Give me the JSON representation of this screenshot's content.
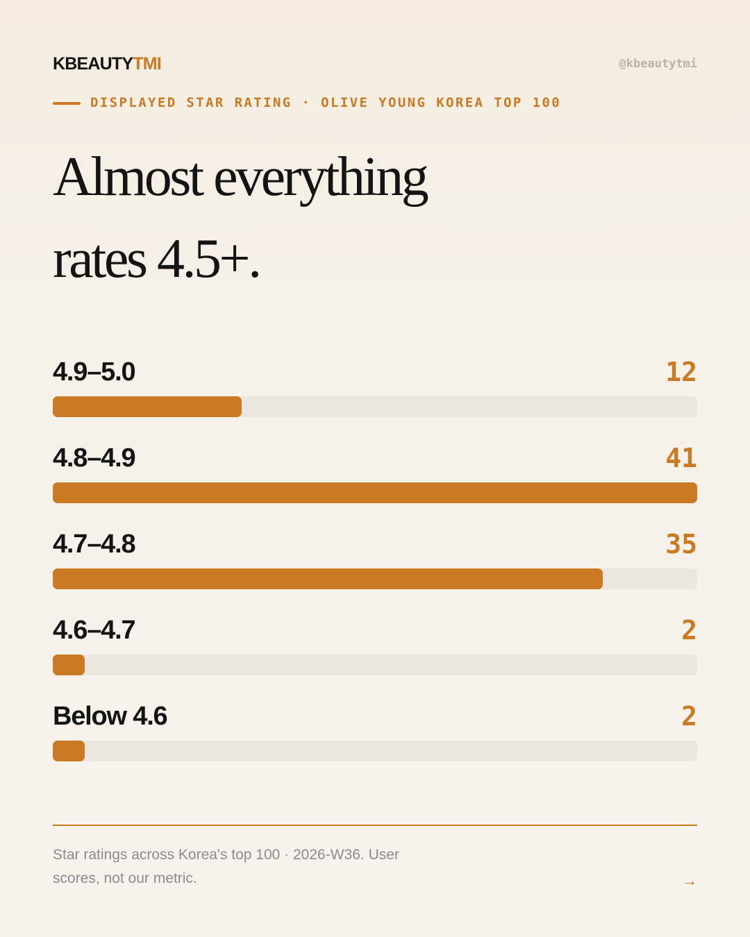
{
  "header": {
    "brand_part1": "KBEAUTY",
    "brand_part2": "TMI",
    "handle": "@kbeautytmi",
    "kicker": "DISPLAYED STAR RATING · OLIVE YOUNG KOREA TOP 100"
  },
  "title": {
    "line1": "Almost everything",
    "line2": "rates 4.5+."
  },
  "chart_data": {
    "type": "bar",
    "orientation": "horizontal",
    "categories": [
      "4.9–5.0",
      "4.8–4.9",
      "4.7–4.8",
      "4.6–4.7",
      "Below 4.6"
    ],
    "values": [
      12,
      41,
      35,
      2,
      2
    ],
    "value_labels": [
      "12",
      "41",
      "35",
      "2",
      "2"
    ],
    "xlim": [
      0,
      41
    ],
    "grid": false,
    "bar_color": "#c97a22",
    "track_color": "#ebe6df"
  },
  "footer": {
    "note": "Star ratings across Korea's top 100 · 2026-W36. User scores, not our metric.",
    "arrow": "→"
  },
  "colors": {
    "accent": "#c97a22",
    "text": "#141414",
    "muted": "#8b8a8f"
  }
}
